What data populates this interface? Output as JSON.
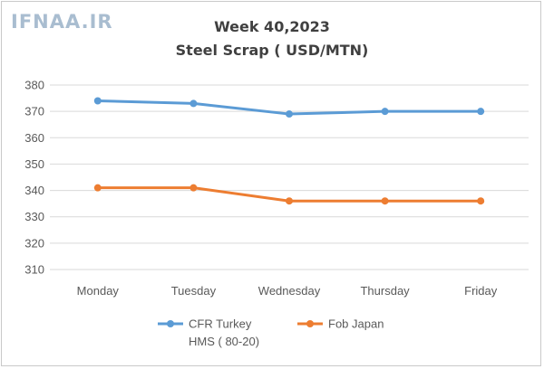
{
  "watermark": "IFNAA.IR",
  "chart_data": {
    "type": "line",
    "title_line1": "Week 40,2023",
    "title_line2": "Steel Scrap ( USD/MTN)",
    "categories": [
      "Monday",
      "Tuesday",
      "Wednesday",
      "Thursday",
      "Friday"
    ],
    "series": [
      {
        "name_line1": "CFR Turkey",
        "name_line2": "HMS ( 80-20)",
        "color": "#5b9bd5",
        "values": [
          374,
          373,
          369,
          370,
          370
        ]
      },
      {
        "name_line1": "Fob Japan",
        "name_line2": "",
        "color": "#ed7d31",
        "values": [
          341,
          341,
          336,
          336,
          336
        ]
      }
    ],
    "ylim": [
      310,
      380
    ],
    "yticks": [
      "380",
      "370",
      "360",
      "350",
      "340",
      "330",
      "320",
      "310"
    ],
    "grid": true,
    "legend_position": "bottom"
  }
}
